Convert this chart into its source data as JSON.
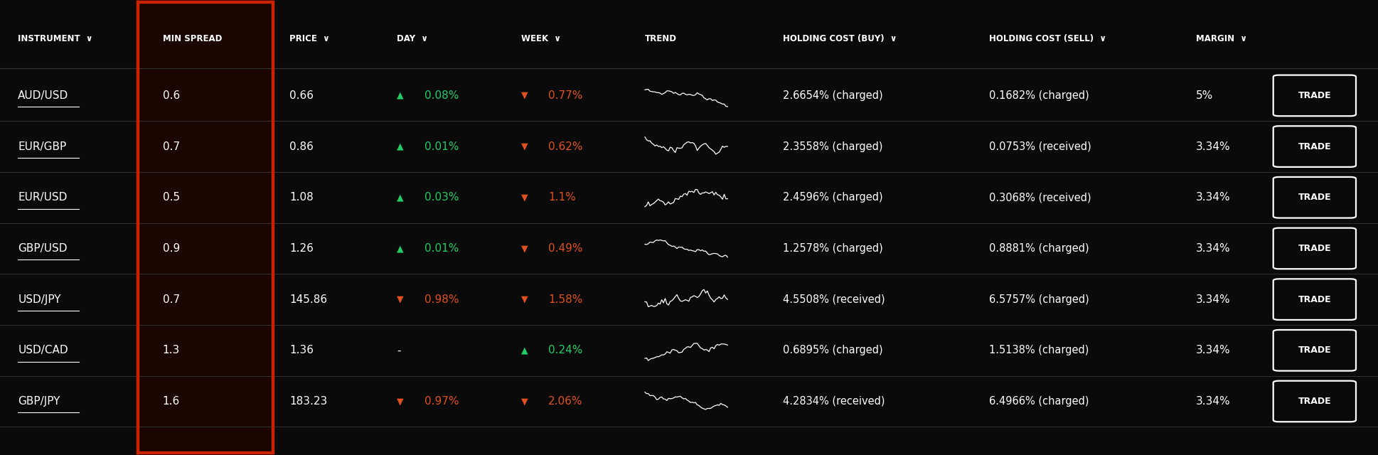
{
  "bg_color": "#0a0a0a",
  "red_border_color": "#cc2200",
  "highlight_col_bg": "#1a0500",
  "text_color": "#ffffff",
  "header_text_color": "#ffffff",
  "green_color": "#22cc66",
  "red_color": "#e05020",
  "divider_color": "#333333",
  "trade_btn_border": "#ffffff",
  "figsize": [
    19.38,
    6.4
  ],
  "dpi": 100,
  "rows": [
    {
      "instrument": "AUD/USD",
      "min_spread": "0.6",
      "price": "0.66",
      "day": "0.08%",
      "day_up": true,
      "week": "0.77%",
      "week_up": false,
      "holding_buy": "2.6654% (charged)",
      "holding_sell": "0.1682% (charged)",
      "margin": "5%"
    },
    {
      "instrument": "EUR/GBP",
      "min_spread": "0.7",
      "price": "0.86",
      "day": "0.01%",
      "day_up": true,
      "week": "0.62%",
      "week_up": false,
      "holding_buy": "2.3558% (charged)",
      "holding_sell": "0.0753% (received)",
      "margin": "3.34%"
    },
    {
      "instrument": "EUR/USD",
      "min_spread": "0.5",
      "price": "1.08",
      "day": "0.03%",
      "day_up": true,
      "week": "1.1%",
      "week_up": false,
      "holding_buy": "2.4596% (charged)",
      "holding_sell": "0.3068% (received)",
      "margin": "3.34%"
    },
    {
      "instrument": "GBP/USD",
      "min_spread": "0.9",
      "price": "1.26",
      "day": "0.01%",
      "day_up": true,
      "week": "0.49%",
      "week_up": false,
      "holding_buy": "1.2578% (charged)",
      "holding_sell": "0.8881% (charged)",
      "margin": "3.34%"
    },
    {
      "instrument": "USD/JPY",
      "min_spread": "0.7",
      "price": "145.86",
      "day": "0.98%",
      "day_up": false,
      "week": "1.58%",
      "week_up": false,
      "holding_buy": "4.5508% (received)",
      "holding_sell": "6.5757% (charged)",
      "margin": "3.34%"
    },
    {
      "instrument": "USD/CAD",
      "min_spread": "1.3",
      "price": "1.36",
      "day": "-",
      "day_up": null,
      "week": "0.24%",
      "week_up": true,
      "holding_buy": "0.6895% (charged)",
      "holding_sell": "1.5138% (charged)",
      "margin": "3.34%"
    },
    {
      "instrument": "GBP/JPY",
      "min_spread": "1.6",
      "price": "183.23",
      "day": "0.97%",
      "day_up": false,
      "week": "2.06%",
      "week_up": false,
      "holding_buy": "4.2834% (received)",
      "holding_sell": "6.4966% (charged)",
      "margin": "3.34%"
    }
  ]
}
